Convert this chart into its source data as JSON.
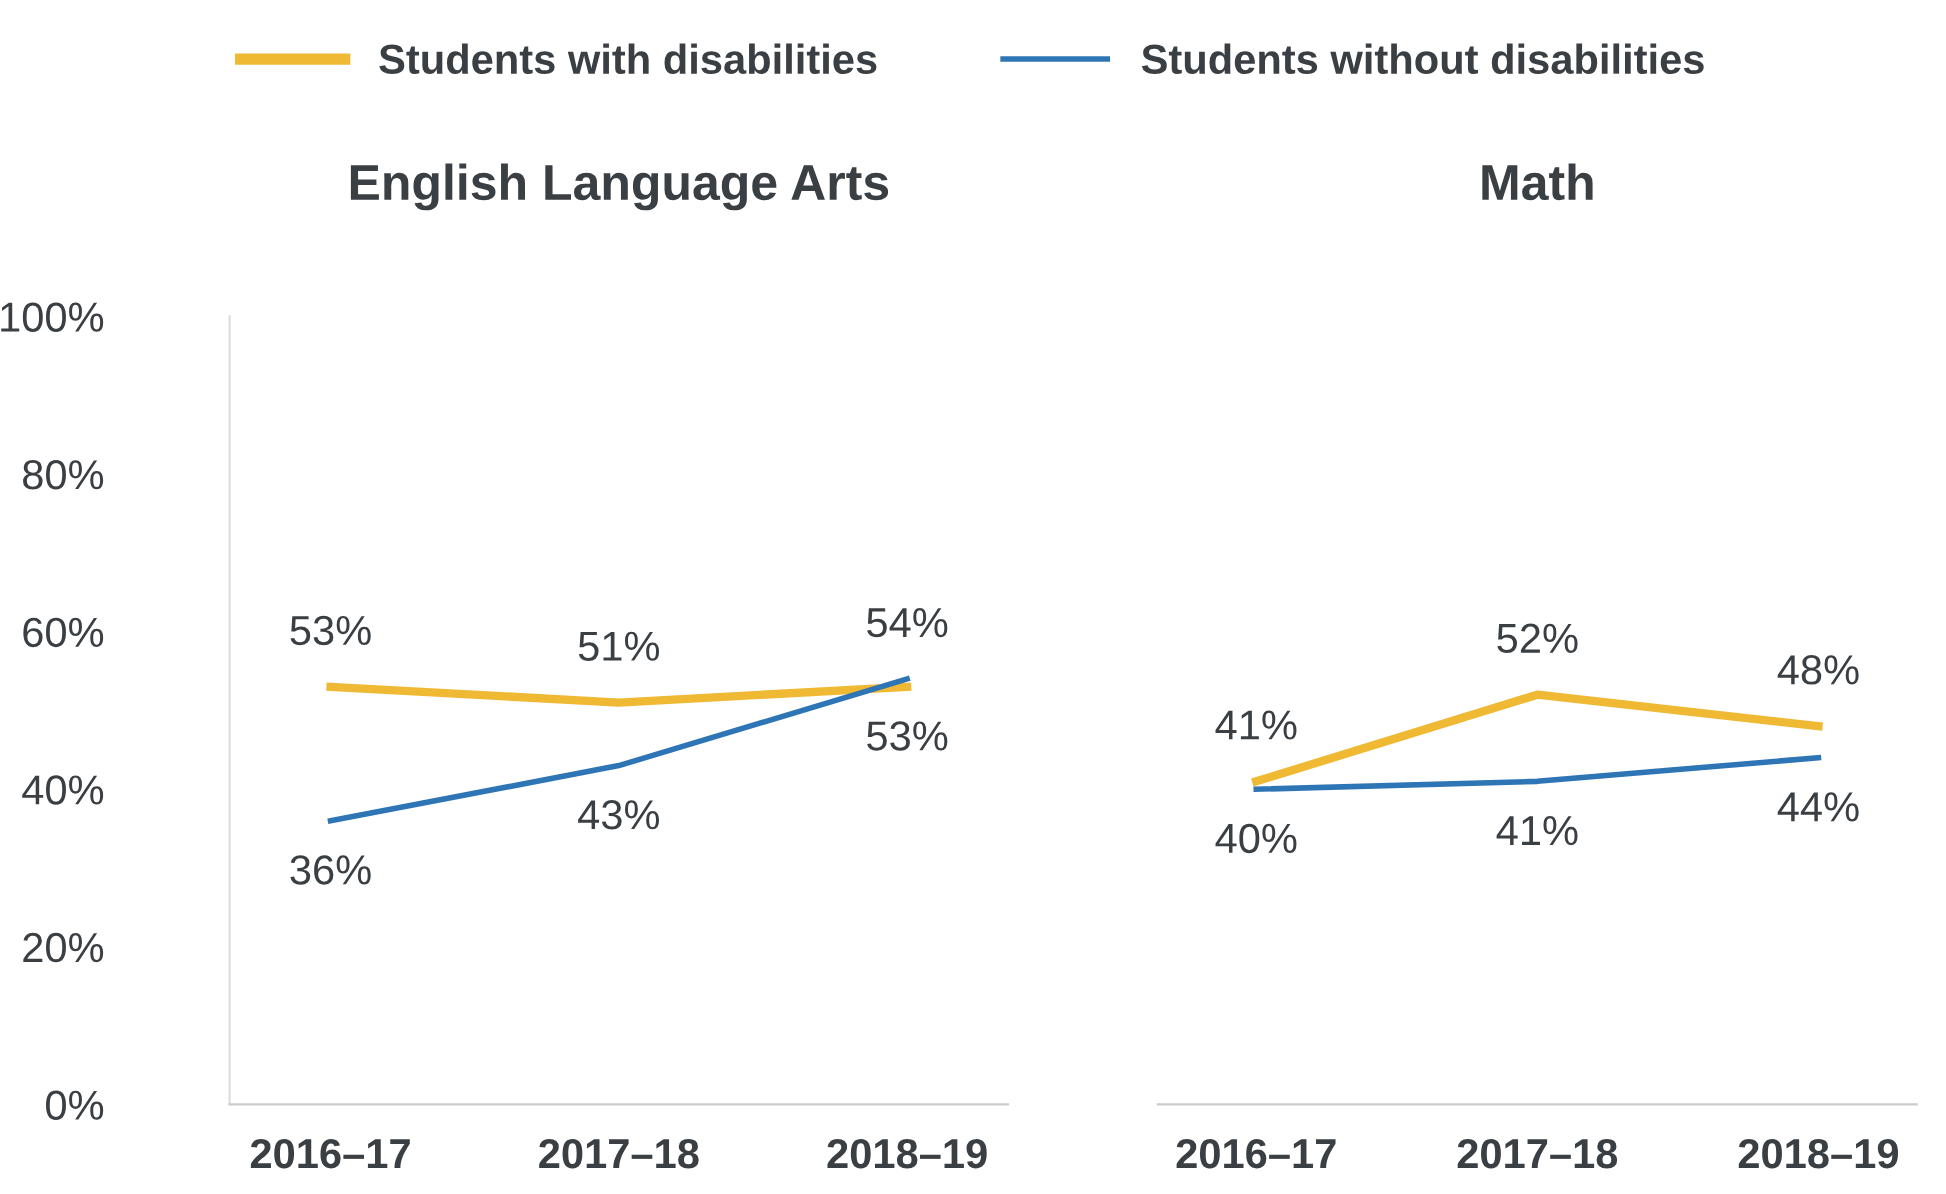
{
  "chart_data": [
    {
      "type": "line",
      "title": "English Language Arts",
      "categories": [
        "2016–17",
        "2017–18",
        "2018–19"
      ],
      "series": [
        {
          "name": "Students with disabilities",
          "color": "#f0b933",
          "values": [
            53,
            51,
            53
          ],
          "value_labels": [
            "53%",
            "51%",
            "53%"
          ]
        },
        {
          "name": "Students without disabilities",
          "color": "#2e75b6",
          "values": [
            36,
            43,
            54
          ],
          "value_labels": [
            "36%",
            "43%",
            "54%"
          ]
        }
      ],
      "ylim": [
        0,
        100
      ],
      "yticks": [
        {
          "value": 0,
          "label": "0%"
        },
        {
          "value": 20,
          "label": "20%"
        },
        {
          "value": 40,
          "label": "40%"
        },
        {
          "value": 60,
          "label": "60%"
        },
        {
          "value": 80,
          "label": "80%"
        },
        {
          "value": 100,
          "label": "100%"
        }
      ],
      "legend": "top",
      "grid": false,
      "marker": "none",
      "line_style": "solid"
    },
    {
      "type": "line",
      "title": "Math",
      "categories": [
        "2016–17",
        "2017–18",
        "2018–19"
      ],
      "series": [
        {
          "color": "#f0b933",
          "values": [
            41,
            52,
            48
          ],
          "value_labels": [
            "41%",
            "52%",
            "48%"
          ]
        },
        {
          "color": "#2e75b6",
          "values": [
            40,
            41,
            44
          ],
          "value_labels": [
            "40%",
            "41%",
            "44%"
          ]
        }
      ],
      "ylim": [
        0,
        100
      ],
      "tick_labels": "x",
      "grid": false,
      "marker": "none",
      "line_style": "solid"
    }
  ]
}
